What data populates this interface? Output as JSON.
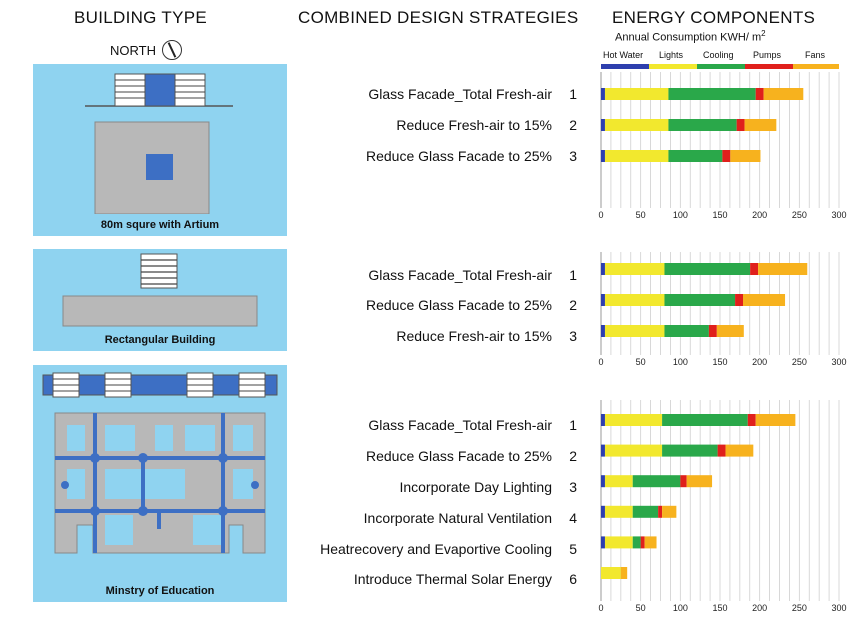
{
  "headers": {
    "building_type": "BUILDING TYPE",
    "strategies": "COMBINED DESIGN STRATEGIES",
    "energy": "ENERGY COMPONENTS",
    "north": "NORTH",
    "subtitle": "Annual Consumption KWH/ m"
  },
  "buildings": [
    {
      "caption": "80m squre with Artium"
    },
    {
      "caption": "Rectangular Building"
    },
    {
      "caption": "Minstry of Education"
    }
  ],
  "strategies": [
    {
      "items": [
        {
          "label": "Glass Facade_Total Fresh-air",
          "num": "1"
        },
        {
          "label": "Reduce Fresh-air to 15%",
          "num": "2"
        },
        {
          "label": "Reduce Glass Facade to 25%",
          "num": "3"
        }
      ]
    },
    {
      "items": [
        {
          "label": "Glass Facade_Total Fresh-air",
          "num": "1"
        },
        {
          "label": "Reduce Glass Facade to 25%",
          "num": "2"
        },
        {
          "label": "Reduce Fresh-air to 15%",
          "num": "3"
        }
      ]
    },
    {
      "items": [
        {
          "label": "Glass Facade_Total Fresh-air",
          "num": "1"
        },
        {
          "label": "Reduce Glass Facade to 25%",
          "num": "2"
        },
        {
          "label": "Incorporate Day Lighting",
          "num": "3"
        },
        {
          "label": "Incorporate Natural Ventilation",
          "num": "4"
        },
        {
          "label": "Heatrecovery and Evaportive Cooling",
          "num": "5"
        },
        {
          "label": "Introduce Thermal Solar Energy",
          "num": "6"
        }
      ]
    }
  ],
  "legend": [
    {
      "name": "Hot Water",
      "color": "#2e3fae"
    },
    {
      "name": "Lights",
      "color": "#f2e82e"
    },
    {
      "name": "Cooling",
      "color": "#2aa84a"
    },
    {
      "name": "Pumps",
      "color": "#e0201c"
    },
    {
      "name": "Fans",
      "color": "#f7b21e"
    }
  ],
  "chart_data": [
    {
      "type": "bar",
      "orientation": "horizontal",
      "stacked": true,
      "categories": [
        "1",
        "2",
        "3"
      ],
      "series": [
        {
          "name": "Hot Water",
          "values": [
            5,
            5,
            5
          ]
        },
        {
          "name": "Lights",
          "values": [
            80,
            80,
            80
          ]
        },
        {
          "name": "Cooling",
          "values": [
            110,
            86,
            68
          ]
        },
        {
          "name": "Pumps",
          "values": [
            10,
            10,
            10
          ]
        },
        {
          "name": "Fans",
          "values": [
            50,
            40,
            38
          ]
        }
      ],
      "xlim": [
        0,
        300
      ],
      "xticks": [
        "0",
        "50",
        "100",
        "150",
        "200",
        "250",
        "300"
      ],
      "grid": true
    },
    {
      "type": "bar",
      "orientation": "horizontal",
      "stacked": true,
      "categories": [
        "1",
        "2",
        "3"
      ],
      "series": [
        {
          "name": "Hot Water",
          "values": [
            5,
            5,
            5
          ]
        },
        {
          "name": "Lights",
          "values": [
            75,
            75,
            75
          ]
        },
        {
          "name": "Cooling",
          "values": [
            108,
            89,
            56
          ]
        },
        {
          "name": "Pumps",
          "values": [
            10,
            10,
            10
          ]
        },
        {
          "name": "Fans",
          "values": [
            62,
            53,
            34
          ]
        }
      ],
      "xlim": [
        0,
        300
      ],
      "xticks": [
        "0",
        "50",
        "100",
        "150",
        "200",
        "250",
        "300"
      ],
      "grid": true
    },
    {
      "type": "bar",
      "orientation": "horizontal",
      "stacked": true,
      "categories": [
        "1",
        "2",
        "3",
        "4",
        "5",
        "6"
      ],
      "series": [
        {
          "name": "Hot Water",
          "values": [
            5,
            5,
            5,
            5,
            5,
            0
          ]
        },
        {
          "name": "Lights",
          "values": [
            72,
            72,
            35,
            35,
            35,
            25
          ]
        },
        {
          "name": "Cooling",
          "values": [
            108,
            70,
            60,
            32,
            10,
            0
          ]
        },
        {
          "name": "Pumps",
          "values": [
            10,
            10,
            8,
            5,
            5,
            0
          ]
        },
        {
          "name": "Fans",
          "values": [
            50,
            35,
            32,
            18,
            15,
            8
          ]
        }
      ],
      "xlim": [
        0,
        300
      ],
      "xticks": [
        "0",
        "50",
        "100",
        "150",
        "200",
        "250",
        "300"
      ],
      "grid": true
    }
  ]
}
